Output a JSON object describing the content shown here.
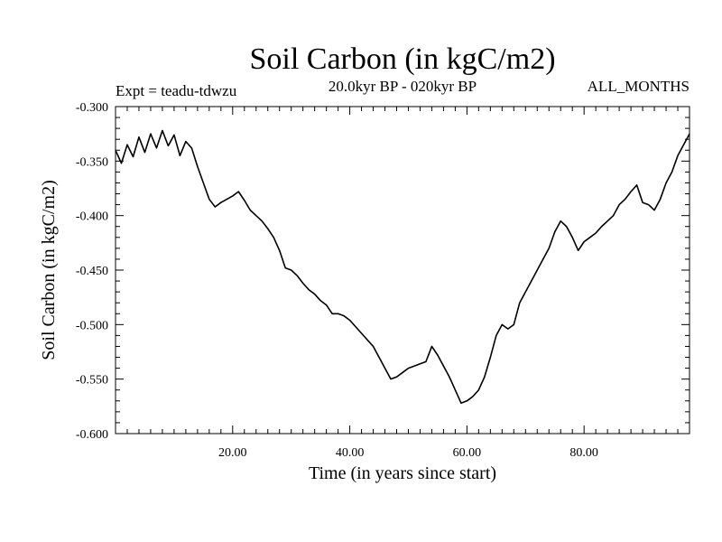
{
  "chart_data": {
    "type": "line",
    "title": "Soil Carbon (in kgC/m2)",
    "subtitle_left": "Expt = teadu-tdwzu",
    "subtitle_center": "20.0kyr BP - 020kyr BP",
    "subtitle_right": "ALL_MONTHS",
    "xlabel": "Time (in years since start)",
    "ylabel": "Soil Carbon (in kgC/m2)",
    "xlim": [
      0,
      98
    ],
    "ylim": [
      -0.6,
      -0.3
    ],
    "x_ticks": [
      20,
      40,
      60,
      80
    ],
    "x_tick_labels": [
      "20.00",
      "40.00",
      "60.00",
      "80.00"
    ],
    "y_ticks": [
      -0.3,
      -0.35,
      -0.4,
      -0.45,
      -0.5,
      -0.55,
      -0.6
    ],
    "y_tick_labels": [
      "-0.300",
      "-0.350",
      "-0.400",
      "-0.450",
      "-0.500",
      "-0.550",
      "-0.600"
    ],
    "grid": false,
    "series": [
      {
        "name": "Soil Carbon",
        "color": "#000000",
        "x": [
          0,
          1,
          2,
          3,
          4,
          5,
          6,
          7,
          8,
          9,
          10,
          11,
          12,
          13,
          14,
          15,
          16,
          17,
          18,
          19,
          20,
          21,
          22,
          23,
          24,
          25,
          26,
          27,
          28,
          29,
          30,
          31,
          32,
          33,
          34,
          35,
          36,
          37,
          38,
          39,
          40,
          41,
          42,
          43,
          44,
          45,
          46,
          47,
          48,
          49,
          50,
          51,
          52,
          53,
          54,
          55,
          56,
          57,
          58,
          59,
          60,
          61,
          62,
          63,
          64,
          65,
          66,
          67,
          68,
          69,
          70,
          71,
          72,
          73,
          74,
          75,
          76,
          77,
          78,
          79,
          80,
          81,
          82,
          83,
          84,
          85,
          86,
          87,
          88,
          89,
          90,
          91,
          92,
          93,
          94,
          95,
          96,
          97,
          98
        ],
        "values": [
          -0.34,
          -0.352,
          -0.335,
          -0.346,
          -0.328,
          -0.342,
          -0.325,
          -0.338,
          -0.322,
          -0.336,
          -0.326,
          -0.345,
          -0.332,
          -0.338,
          -0.355,
          -0.37,
          -0.385,
          -0.392,
          -0.388,
          -0.385,
          -0.382,
          -0.378,
          -0.386,
          -0.395,
          -0.4,
          -0.405,
          -0.412,
          -0.42,
          -0.432,
          -0.448,
          -0.45,
          -0.455,
          -0.462,
          -0.468,
          -0.472,
          -0.478,
          -0.482,
          -0.49,
          -0.49,
          -0.492,
          -0.496,
          -0.502,
          -0.508,
          -0.514,
          -0.52,
          -0.53,
          -0.54,
          -0.55,
          -0.548,
          -0.544,
          -0.54,
          -0.538,
          -0.536,
          -0.534,
          -0.52,
          -0.528,
          -0.538,
          -0.548,
          -0.56,
          -0.572,
          -0.57,
          -0.566,
          -0.56,
          -0.548,
          -0.53,
          -0.51,
          -0.5,
          -0.504,
          -0.5,
          -0.48,
          -0.47,
          -0.46,
          -0.45,
          -0.44,
          -0.43,
          -0.415,
          -0.405,
          -0.41,
          -0.42,
          -0.432,
          -0.424,
          -0.42,
          -0.416,
          -0.41,
          -0.405,
          -0.4,
          -0.39,
          -0.385,
          -0.378,
          -0.372,
          -0.388,
          -0.39,
          -0.395,
          -0.385,
          -0.37,
          -0.36,
          -0.345,
          -0.335,
          -0.325
        ]
      }
    ]
  }
}
